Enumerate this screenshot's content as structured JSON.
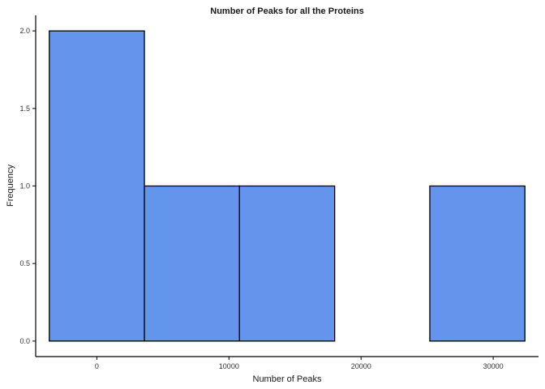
{
  "chart_data": {
    "type": "bar",
    "title": "Number of Peaks for all the Proteins",
    "xlabel": "Number of Peaks",
    "ylabel": "Frequency",
    "bins": [
      {
        "x0": -3600,
        "x1": 3600,
        "count": 2
      },
      {
        "x0": 3600,
        "x1": 10800,
        "count": 1
      },
      {
        "x0": 10800,
        "x1": 18000,
        "count": 1
      },
      {
        "x0": 18000,
        "x1": 25200,
        "count": 0
      },
      {
        "x0": 25200,
        "x1": 32400,
        "count": 1
      }
    ],
    "xlim": [
      -4630,
      33430
    ],
    "ylim": [
      -0.1,
      2.1
    ],
    "xticks": [
      0,
      10000,
      20000,
      30000
    ],
    "xtick_labels": [
      "0",
      "10000",
      "20000",
      "30000"
    ],
    "yticks": [
      0.0,
      0.5,
      1.0,
      1.5,
      2.0
    ],
    "ytick_labels": [
      "0.0",
      "0.5",
      "1.0",
      "1.5",
      "2.0"
    ],
    "grid": false,
    "legend": "none",
    "colors": {
      "bar_fill": "#6495ED",
      "bar_stroke": "#000000",
      "axis": "#000000"
    }
  }
}
